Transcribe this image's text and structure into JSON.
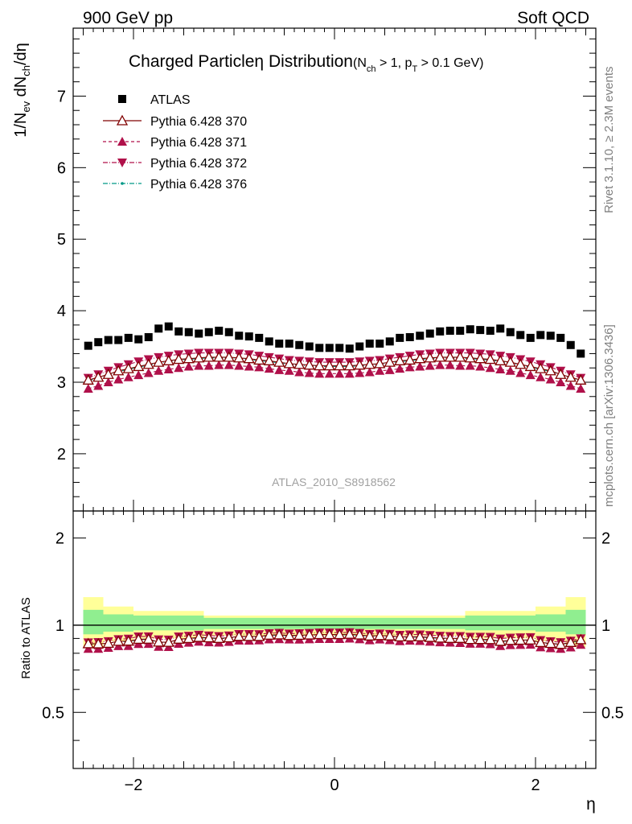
{
  "header": {
    "left": "900 GeV pp",
    "right": "Soft QCD"
  },
  "side_labels": {
    "rivet": "Rivet 3.1.10, ≥ 2.3M events",
    "mcplots": "mcplots.cern.ch [arXiv:1306.3436]"
  },
  "watermark": "ATLAS_2010_S8918562",
  "chart_data": {
    "type": "scatter",
    "title": {
      "main": "Charged Particle",
      "eta": "η",
      "main2": " Distribution",
      "cut1": "(N",
      "cut1_sub": "ch",
      "cut2": " > 1, p",
      "cut2_sub": "T",
      "cut3": " > 0.1 GeV)"
    },
    "ylabel": {
      "a": "1/N",
      "a_sub": "ev",
      "b": " dN",
      "b_sub": "ch",
      "c": "/dη"
    },
    "ratio_ylabel": "Ratio to ATLAS",
    "xlabel": "η",
    "xlim": [
      -2.6,
      2.6
    ],
    "ylim": [
      1.2,
      7.95
    ],
    "ratio_ylim": [
      0.32,
      2.48
    ],
    "ratio_log": true,
    "xticks": [
      {
        "v": -2,
        "label": "−2"
      },
      {
        "v": 0,
        "label": "0"
      },
      {
        "v": 2,
        "label": "2"
      }
    ],
    "yticks": [
      {
        "v": 2,
        "label": "2"
      },
      {
        "v": 3,
        "label": "3"
      },
      {
        "v": 4,
        "label": "4"
      },
      {
        "v": 5,
        "label": "5"
      },
      {
        "v": 6,
        "label": "6"
      },
      {
        "v": 7,
        "label": "7"
      }
    ],
    "ratio_yticks": [
      {
        "v": 0.5,
        "label": "0.5"
      },
      {
        "v": 1,
        "label": "1"
      },
      {
        "v": 2,
        "label": "2"
      }
    ],
    "eta": [
      -2.45,
      -2.35,
      -2.25,
      -2.15,
      -2.05,
      -1.95,
      -1.85,
      -1.75,
      -1.65,
      -1.55,
      -1.45,
      -1.35,
      -1.25,
      -1.15,
      -1.05,
      -0.95,
      -0.85,
      -0.75,
      -0.65,
      -0.55,
      -0.45,
      -0.35,
      -0.25,
      -0.15,
      -0.05,
      0.05,
      0.15,
      0.25,
      0.35,
      0.45,
      0.55,
      0.65,
      0.75,
      0.85,
      0.95,
      1.05,
      1.15,
      1.25,
      1.35,
      1.45,
      1.55,
      1.65,
      1.75,
      1.85,
      1.95,
      2.05,
      2.15,
      2.25,
      2.35,
      2.45
    ],
    "series": [
      {
        "name": "ATLAS",
        "marker": "square",
        "color": "#000000",
        "values": [
          3.51,
          3.56,
          3.59,
          3.59,
          3.62,
          3.6,
          3.63,
          3.75,
          3.78,
          3.71,
          3.7,
          3.68,
          3.7,
          3.72,
          3.7,
          3.65,
          3.64,
          3.62,
          3.57,
          3.54,
          3.54,
          3.52,
          3.5,
          3.48,
          3.48,
          3.48,
          3.47,
          3.5,
          3.54,
          3.54,
          3.57,
          3.62,
          3.63,
          3.65,
          3.68,
          3.71,
          3.72,
          3.72,
          3.74,
          3.73,
          3.72,
          3.75,
          3.7,
          3.66,
          3.62,
          3.66,
          3.65,
          3.62,
          3.52,
          3.4
        ]
      },
      {
        "name": "Pythia 6.428 370",
        "marker": "triangle-open",
        "color": "#800000",
        "values": [
          3.03,
          3.07,
          3.11,
          3.16,
          3.19,
          3.22,
          3.25,
          3.28,
          3.3,
          3.32,
          3.33,
          3.34,
          3.35,
          3.35,
          3.35,
          3.34,
          3.33,
          3.31,
          3.3,
          3.28,
          3.26,
          3.25,
          3.24,
          3.23,
          3.23,
          3.23,
          3.23,
          3.24,
          3.25,
          3.26,
          3.28,
          3.3,
          3.31,
          3.33,
          3.34,
          3.35,
          3.35,
          3.35,
          3.34,
          3.33,
          3.32,
          3.3,
          3.28,
          3.25,
          3.22,
          3.19,
          3.16,
          3.11,
          3.07,
          3.03
        ]
      },
      {
        "name": "Pythia 6.428 371",
        "marker": "triangle-up",
        "color": "#b0104a",
        "values": [
          2.91,
          2.95,
          3.0,
          3.04,
          3.07,
          3.1,
          3.13,
          3.16,
          3.18,
          3.2,
          3.22,
          3.23,
          3.23,
          3.24,
          3.24,
          3.23,
          3.22,
          3.21,
          3.19,
          3.17,
          3.16,
          3.14,
          3.13,
          3.12,
          3.12,
          3.12,
          3.12,
          3.13,
          3.14,
          3.16,
          3.17,
          3.19,
          3.21,
          3.22,
          3.23,
          3.24,
          3.24,
          3.23,
          3.23,
          3.22,
          3.2,
          3.18,
          3.16,
          3.13,
          3.1,
          3.07,
          3.04,
          3.0,
          2.95,
          2.91
        ]
      },
      {
        "name": "Pythia 6.428 372",
        "marker": "triangle-down",
        "color": "#b0104a",
        "values": [
          3.06,
          3.11,
          3.16,
          3.21,
          3.25,
          3.29,
          3.32,
          3.35,
          3.37,
          3.39,
          3.4,
          3.41,
          3.41,
          3.41,
          3.41,
          3.4,
          3.39,
          3.37,
          3.35,
          3.33,
          3.31,
          3.3,
          3.29,
          3.28,
          3.28,
          3.28,
          3.28,
          3.29,
          3.3,
          3.31,
          3.33,
          3.35,
          3.37,
          3.39,
          3.4,
          3.41,
          3.41,
          3.41,
          3.41,
          3.4,
          3.39,
          3.37,
          3.35,
          3.32,
          3.29,
          3.25,
          3.21,
          3.16,
          3.11,
          3.06
        ]
      },
      {
        "name": "Pythia 6.428 376",
        "marker": "dot",
        "color": "#009988",
        "values": [
          3.02,
          3.06,
          3.11,
          3.15,
          3.18,
          3.21,
          3.24,
          3.27,
          3.29,
          3.31,
          3.32,
          3.33,
          3.34,
          3.34,
          3.34,
          3.33,
          3.32,
          3.3,
          3.29,
          3.27,
          3.25,
          3.24,
          3.23,
          3.22,
          3.22,
          3.22,
          3.22,
          3.23,
          3.24,
          3.25,
          3.27,
          3.29,
          3.3,
          3.32,
          3.33,
          3.34,
          3.34,
          3.34,
          3.33,
          3.32,
          3.31,
          3.29,
          3.27,
          3.24,
          3.21,
          3.18,
          3.15,
          3.11,
          3.06,
          3.02
        ]
      }
    ],
    "ratio_bands": [
      {
        "from": -2.5,
        "to": -2.3,
        "stat_lo": 0.93,
        "stat_hi": 1.13,
        "sys_lo": 0.84,
        "sys_hi": 1.25
      },
      {
        "from": -2.3,
        "to": -2.0,
        "stat_lo": 0.95,
        "stat_hi": 1.09,
        "sys_lo": 0.88,
        "sys_hi": 1.16
      },
      {
        "from": -2.0,
        "to": -1.3,
        "stat_lo": 0.96,
        "stat_hi": 1.08,
        "sys_lo": 0.9,
        "sys_hi": 1.12
      },
      {
        "from": -1.3,
        "to": 1.3,
        "stat_lo": 0.97,
        "stat_hi": 1.06,
        "sys_lo": 0.92,
        "sys_hi": 1.08
      },
      {
        "from": 1.3,
        "to": 2.0,
        "stat_lo": 0.96,
        "stat_hi": 1.08,
        "sys_lo": 0.9,
        "sys_hi": 1.12
      },
      {
        "from": 2.0,
        "to": 2.3,
        "stat_lo": 0.95,
        "stat_hi": 1.09,
        "sys_lo": 0.88,
        "sys_hi": 1.16
      },
      {
        "from": 2.3,
        "to": 2.5,
        "stat_lo": 0.93,
        "stat_hi": 1.13,
        "sys_lo": 0.84,
        "sys_hi": 1.25
      }
    ],
    "band_colors": {
      "stat": "#90ee90",
      "sys": "#ffff99"
    },
    "legend_placement": "top-left",
    "grid": false
  }
}
